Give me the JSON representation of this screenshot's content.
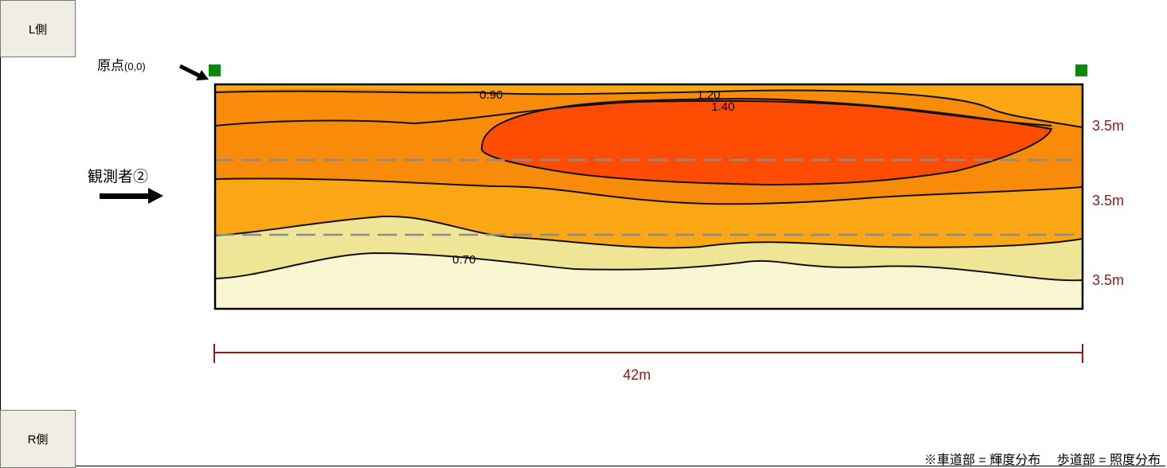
{
  "side_labels": {
    "left": "L側",
    "right": "R側"
  },
  "origin": {
    "label": "原点",
    "coord": "(0,0)"
  },
  "observer": {
    "label": "観測者②"
  },
  "lane_widths": [
    "3.5m",
    "3.5m",
    "3.5m"
  ],
  "length_label": "42m",
  "contour_labels": [
    "0.90",
    "1.20",
    "1.40",
    "0.70"
  ],
  "footnote": "※車道部 = 輝度分布　 歩道部 = 照度分布",
  "colors": {
    "band_lowest": "#fbf6d2",
    "band_low": "#efe597",
    "band_mid": "#faa615",
    "band_midhigh": "#f88c0a",
    "band_high": "#fe4c02",
    "marker": "#0a8a0a",
    "dimension": "#8b1a1a",
    "lane_divider": "#8c8c8c"
  },
  "icons": {
    "origin_arrow": "arrow-down-right-icon",
    "observer_arrow": "arrow-right-icon",
    "marker": "square-marker-icon"
  }
}
